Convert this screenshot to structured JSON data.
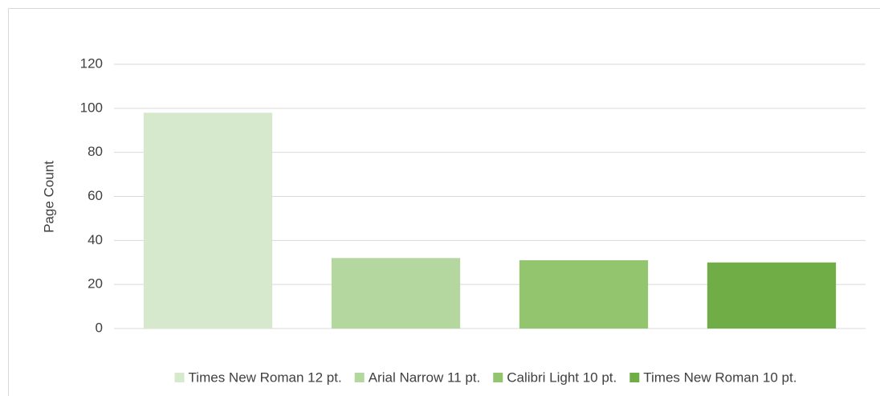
{
  "chart_data": {
    "type": "bar",
    "y_label": "Page Count",
    "categories": [
      null
    ],
    "series": [
      {
        "name": "Times New Roman 12 pt.",
        "color": "#d6e9cd",
        "values": [
          98
        ]
      },
      {
        "name": "Arial Narrow 11 pt.",
        "color": "#b4d7a0",
        "values": [
          32
        ]
      },
      {
        "name": "Calibri Light 10 pt.",
        "color": "#93c56f",
        "values": [
          31
        ]
      },
      {
        "name": "Times New Roman 10 pt.",
        "color": "#70ad47",
        "values": [
          30
        ]
      }
    ],
    "ylim": [
      0,
      120
    ],
    "yticks": [
      0,
      20,
      40,
      60,
      80,
      100,
      120
    ],
    "grid": true,
    "legend": "bottom"
  }
}
